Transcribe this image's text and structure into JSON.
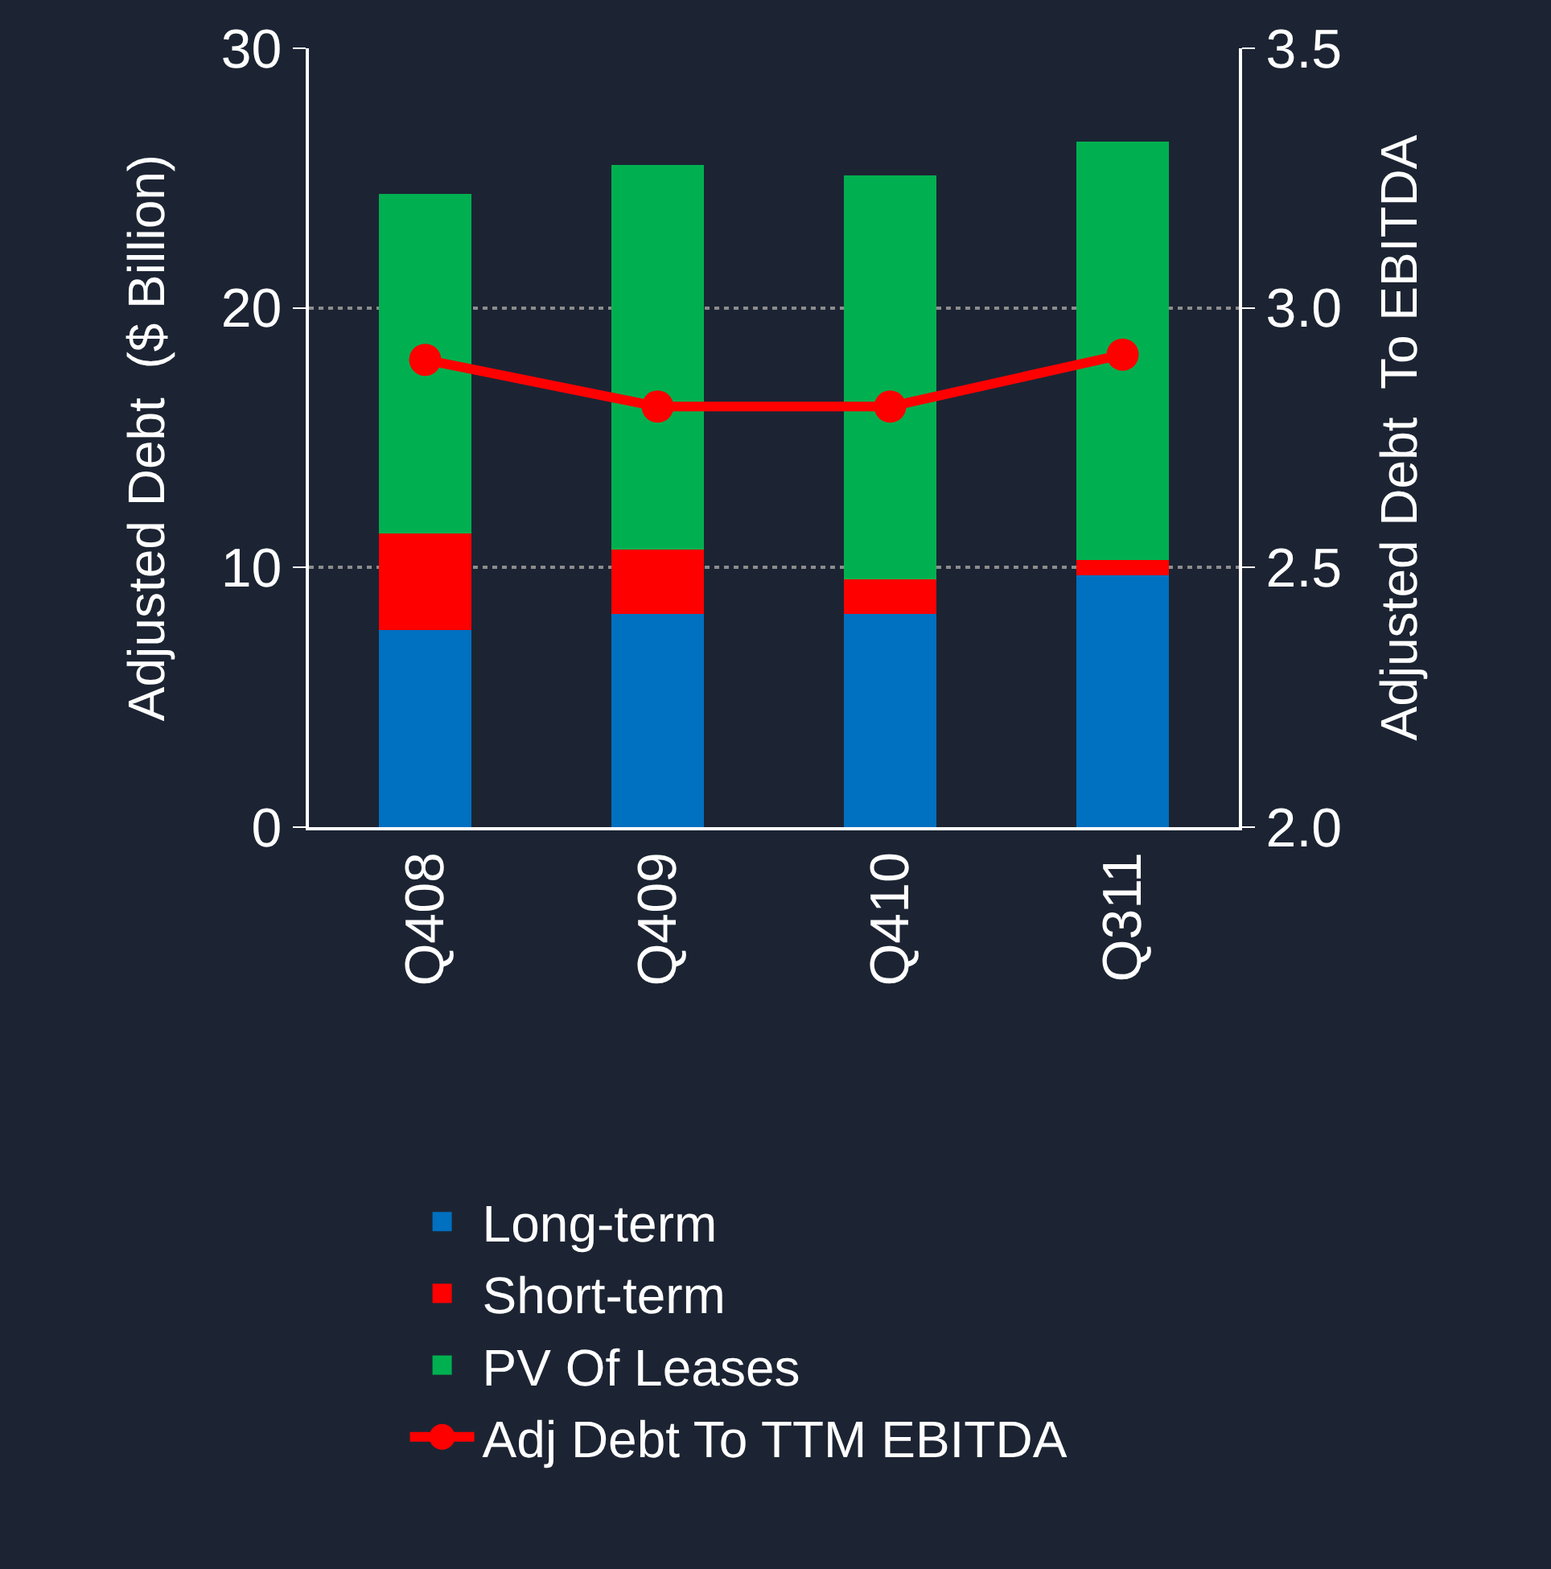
{
  "chart_data": {
    "type": "bar",
    "stacked": true,
    "ylabel": "Adjusted Debt  ($ Billion)",
    "y2label": "Adjusted Debt  To EBITDA",
    "categories": [
      "Q408",
      "Q409",
      "Q410",
      "Q311"
    ],
    "series": [
      {
        "name": "Long-term",
        "color": "#0070c0",
        "values": [
          7.6,
          8.2,
          8.2,
          9.7
        ]
      },
      {
        "name": "Short-term",
        "color": "#ff0000",
        "values": [
          3.7,
          2.5,
          1.35,
          0.6
        ]
      },
      {
        "name": "PV Of Leases",
        "color": "#00b050",
        "values": [
          13.1,
          14.8,
          15.55,
          16.1
        ]
      },
      {
        "name": "Adj Debt To TTM EBITDA",
        "type": "line",
        "axis": "y2",
        "color": "#ff0000",
        "values": [
          2.9,
          2.81,
          2.81,
          2.91
        ]
      }
    ],
    "ylim": [
      0,
      30
    ],
    "yticks": [
      0,
      10,
      20,
      30
    ],
    "y2lim": [
      2.0,
      3.5
    ],
    "y2ticks": [
      {
        "value": 2.0,
        "label": "2.0"
      },
      {
        "value": 2.5,
        "label": "2.5"
      },
      {
        "value": 3.0,
        "label": "3.0"
      },
      {
        "value": 3.5,
        "label": "3.5"
      }
    ],
    "grid": "y",
    "legend": "bottom",
    "marker": "circle",
    "line_style": "solid"
  }
}
